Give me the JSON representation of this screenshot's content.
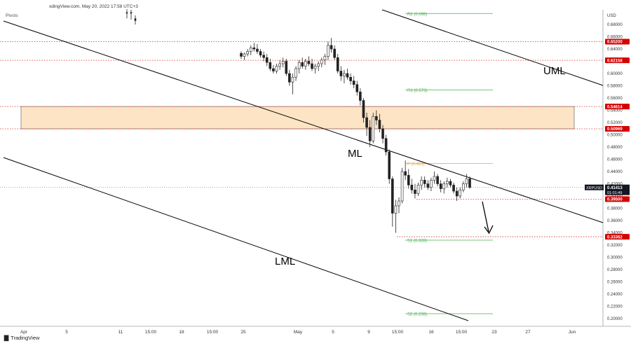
{
  "header": {
    "title": "xdingView.com, May 20, 2022 17:58 UTC+3",
    "indicator": "Pivots"
  },
  "footer": {
    "brand": "TradingView"
  },
  "colors": {
    "candle": "#222222",
    "pivot_line": "#4caf50",
    "pivot_p_line": "#f0a030",
    "level_red": "#d32f2f",
    "zone_fill": "#fde4c4",
    "trend_line": "#000000",
    "badge_red": "#d50000",
    "badge_black": "#131722"
  },
  "chart_data": {
    "type": "candlestick",
    "symbol": "XRPUSD",
    "currency": "USD",
    "x_labels": [
      "Apr",
      "5",
      "11",
      "15:00",
      "18",
      "15:00",
      "25",
      "May",
      "5",
      "9",
      "15:00",
      "16",
      "15:00",
      "23",
      "27",
      "Jun"
    ],
    "y_labels": [
      "0.68000",
      "0.66000",
      "0.64000",
      "0.62000",
      "0.60000",
      "0.58000",
      "0.56000",
      "0.54000",
      "0.52000",
      "0.50000",
      "0.48000",
      "0.46000",
      "0.44000",
      "0.42000",
      "0.40000",
      "0.38000",
      "0.36000",
      "0.34000",
      "0.32000",
      "0.30000",
      "0.28000",
      "0.26000",
      "0.24000",
      "0.22000",
      "0.20000"
    ],
    "ylim": [
      0.195,
      0.7
    ],
    "current_price": {
      "label": "XRPUSD",
      "value": "0.41413",
      "countdown": "01:01:49"
    },
    "price_levels": [
      {
        "value": "0.65200",
        "y": 0.652
      },
      {
        "value": "0.62158",
        "y": 0.62158
      },
      {
        "value": "0.54614",
        "y": 0.54614
      },
      {
        "value": "0.50969",
        "y": 0.50969
      },
      {
        "value": "0.39500",
        "y": 0.395
      },
      {
        "value": "0.33362",
        "y": 0.33362
      }
    ],
    "supply_zone": {
      "from": 0.50969,
      "to": 0.54614
    },
    "pivots": [
      {
        "label": "R2 (0.698)",
        "y": 0.698
      },
      {
        "label": "R1 (0.573)",
        "y": 0.573
      },
      {
        "label": "P (0.453)",
        "y": 0.453
      },
      {
        "label": "S1 (0.328)",
        "y": 0.328
      },
      {
        "label": "S2 (0.208)",
        "y": 0.208
      }
    ],
    "annotations": [
      "UML",
      "ML",
      "LML"
    ],
    "candles": [
      [
        0.633,
        0.636,
        0.624,
        0.628
      ],
      [
        0.628,
        0.634,
        0.622,
        0.632
      ],
      [
        0.632,
        0.64,
        0.628,
        0.636
      ],
      [
        0.636,
        0.646,
        0.63,
        0.642
      ],
      [
        0.642,
        0.65,
        0.636,
        0.64
      ],
      [
        0.64,
        0.648,
        0.632,
        0.636
      ],
      [
        0.636,
        0.64,
        0.626,
        0.63
      ],
      [
        0.63,
        0.636,
        0.62,
        0.626
      ],
      [
        0.626,
        0.632,
        0.612,
        0.618
      ],
      [
        0.618,
        0.624,
        0.604,
        0.608
      ],
      [
        0.608,
        0.614,
        0.6,
        0.604
      ],
      [
        0.604,
        0.616,
        0.6,
        0.612
      ],
      [
        0.612,
        0.622,
        0.606,
        0.616
      ],
      [
        0.616,
        0.626,
        0.61,
        0.62
      ],
      [
        0.62,
        0.624,
        0.596,
        0.6
      ],
      [
        0.6,
        0.606,
        0.58,
        0.586
      ],
      [
        0.586,
        0.6,
        0.566,
        0.594
      ],
      [
        0.594,
        0.612,
        0.588,
        0.608
      ],
      [
        0.608,
        0.622,
        0.6,
        0.618
      ],
      [
        0.618,
        0.626,
        0.608,
        0.612
      ],
      [
        0.612,
        0.624,
        0.606,
        0.62
      ],
      [
        0.62,
        0.628,
        0.612,
        0.616
      ],
      [
        0.616,
        0.624,
        0.604,
        0.608
      ],
      [
        0.608,
        0.616,
        0.6,
        0.612
      ],
      [
        0.612,
        0.62,
        0.604,
        0.616
      ],
      [
        0.616,
        0.626,
        0.61,
        0.622
      ],
      [
        0.622,
        0.632,
        0.614,
        0.628
      ],
      [
        0.628,
        0.652,
        0.622,
        0.646
      ],
      [
        0.646,
        0.658,
        0.634,
        0.64
      ],
      [
        0.64,
        0.646,
        0.622,
        0.626
      ],
      [
        0.626,
        0.632,
        0.6,
        0.604
      ],
      [
        0.604,
        0.612,
        0.588,
        0.596
      ],
      [
        0.596,
        0.606,
        0.584,
        0.6
      ],
      [
        0.6,
        0.608,
        0.59,
        0.594
      ],
      [
        0.594,
        0.6,
        0.582,
        0.588
      ],
      [
        0.588,
        0.596,
        0.576,
        0.582
      ],
      [
        0.582,
        0.588,
        0.564,
        0.57
      ],
      [
        0.57,
        0.576,
        0.548,
        0.556
      ],
      [
        0.556,
        0.56,
        0.52,
        0.528
      ],
      [
        0.528,
        0.536,
        0.498,
        0.512
      ],
      [
        0.512,
        0.524,
        0.48,
        0.49
      ],
      [
        0.49,
        0.536,
        0.486,
        0.53
      ],
      [
        0.53,
        0.54,
        0.516,
        0.524
      ],
      [
        0.524,
        0.534,
        0.504,
        0.51
      ],
      [
        0.51,
        0.516,
        0.486,
        0.494
      ],
      [
        0.494,
        0.5,
        0.466,
        0.472
      ],
      [
        0.472,
        0.476,
        0.42,
        0.428
      ],
      [
        0.428,
        0.432,
        0.35,
        0.372
      ],
      [
        0.372,
        0.394,
        0.34,
        0.384
      ],
      [
        0.384,
        0.398,
        0.372,
        0.392
      ],
      [
        0.392,
        0.446,
        0.388,
        0.44
      ],
      [
        0.44,
        0.458,
        0.426,
        0.434
      ],
      [
        0.434,
        0.444,
        0.412,
        0.418
      ],
      [
        0.418,
        0.428,
        0.404,
        0.41
      ],
      [
        0.41,
        0.42,
        0.396,
        0.404
      ],
      [
        0.404,
        0.422,
        0.4,
        0.418
      ],
      [
        0.418,
        0.432,
        0.41,
        0.426
      ],
      [
        0.426,
        0.432,
        0.414,
        0.42
      ],
      [
        0.42,
        0.426,
        0.41,
        0.414
      ],
      [
        0.414,
        0.43,
        0.408,
        0.426
      ],
      [
        0.426,
        0.44,
        0.42,
        0.432
      ],
      [
        0.432,
        0.436,
        0.416,
        0.42
      ],
      [
        0.42,
        0.426,
        0.406,
        0.412
      ],
      [
        0.412,
        0.424,
        0.404,
        0.42
      ],
      [
        0.42,
        0.43,
        0.414,
        0.424
      ],
      [
        0.424,
        0.428,
        0.414,
        0.418
      ],
      [
        0.418,
        0.422,
        0.404,
        0.408
      ],
      [
        0.408,
        0.414,
        0.392,
        0.4
      ],
      [
        0.4,
        0.414,
        0.396,
        0.41
      ],
      [
        0.41,
        0.424,
        0.406,
        0.42
      ],
      [
        0.42,
        0.436,
        0.414,
        0.428
      ],
      [
        0.428,
        0.432,
        0.412,
        0.41413
      ]
    ]
  }
}
